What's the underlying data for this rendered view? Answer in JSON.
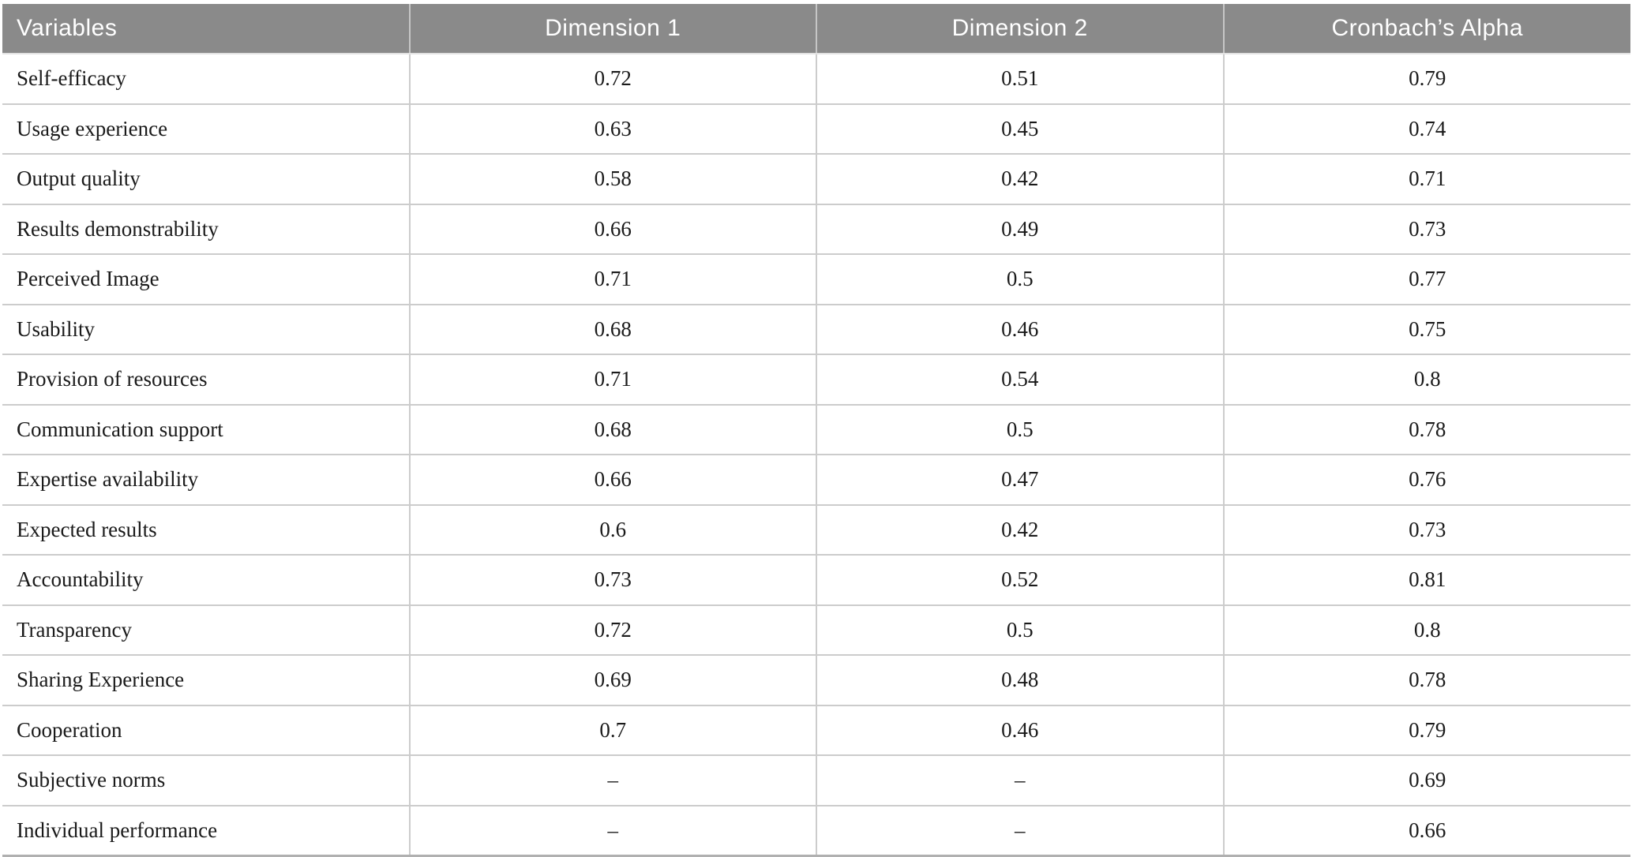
{
  "page": {
    "background": "#ffffff"
  },
  "table": {
    "title": "variables-reliability-table",
    "header_bg": "#8a8a8a",
    "header_text_color": "#ffffff",
    "body_text_color": "#1a1a1a",
    "grid_color": "#cccccc",
    "bottom_border_color": "#b0b0b0",
    "columns": [
      {
        "key": "variable",
        "label": "Variables",
        "align": "left"
      },
      {
        "key": "dim1",
        "label": "Dimension 1",
        "align": "center"
      },
      {
        "key": "dim2",
        "label": "Dimension 2",
        "align": "center"
      },
      {
        "key": "alpha",
        "label": "Cronbach’s Alpha",
        "align": "center"
      }
    ],
    "rows": [
      {
        "variable": "Self-efficacy",
        "dim1": "0.72",
        "dim2": "0.51",
        "alpha": "0.79"
      },
      {
        "variable": "Usage experience",
        "dim1": "0.63",
        "dim2": "0.45",
        "alpha": "0.74"
      },
      {
        "variable": "Output quality",
        "dim1": "0.58",
        "dim2": "0.42",
        "alpha": "0.71"
      },
      {
        "variable": "Results demonstrability",
        "dim1": "0.66",
        "dim2": "0.49",
        "alpha": "0.73"
      },
      {
        "variable": "Perceived Image",
        "dim1": "0.71",
        "dim2": "0.5",
        "alpha": "0.77"
      },
      {
        "variable": "Usability",
        "dim1": "0.68",
        "dim2": "0.46",
        "alpha": "0.75"
      },
      {
        "variable": "Provision of resources",
        "dim1": "0.71",
        "dim2": "0.54",
        "alpha": "0.8"
      },
      {
        "variable": "Communication support",
        "dim1": "0.68",
        "dim2": "0.5",
        "alpha": "0.78"
      },
      {
        "variable": "Expertise availability",
        "dim1": "0.66",
        "dim2": "0.47",
        "alpha": "0.76"
      },
      {
        "variable": "Expected results",
        "dim1": "0.6",
        "dim2": "0.42",
        "alpha": "0.73"
      },
      {
        "variable": "Accountability",
        "dim1": "0.73",
        "dim2": "0.52",
        "alpha": "0.81"
      },
      {
        "variable": "Transparency",
        "dim1": "0.72",
        "dim2": "0.5",
        "alpha": "0.8"
      },
      {
        "variable": "Sharing Experience",
        "dim1": "0.69",
        "dim2": "0.48",
        "alpha": "0.78"
      },
      {
        "variable": "Cooperation",
        "dim1": "0.7",
        "dim2": "0.46",
        "alpha": "0.79"
      },
      {
        "variable": "Subjective norms",
        "dim1": "–",
        "dim2": "–",
        "alpha": "0.69"
      },
      {
        "variable": "Individual performance",
        "dim1": "–",
        "dim2": "–",
        "alpha": "0.66"
      }
    ]
  }
}
